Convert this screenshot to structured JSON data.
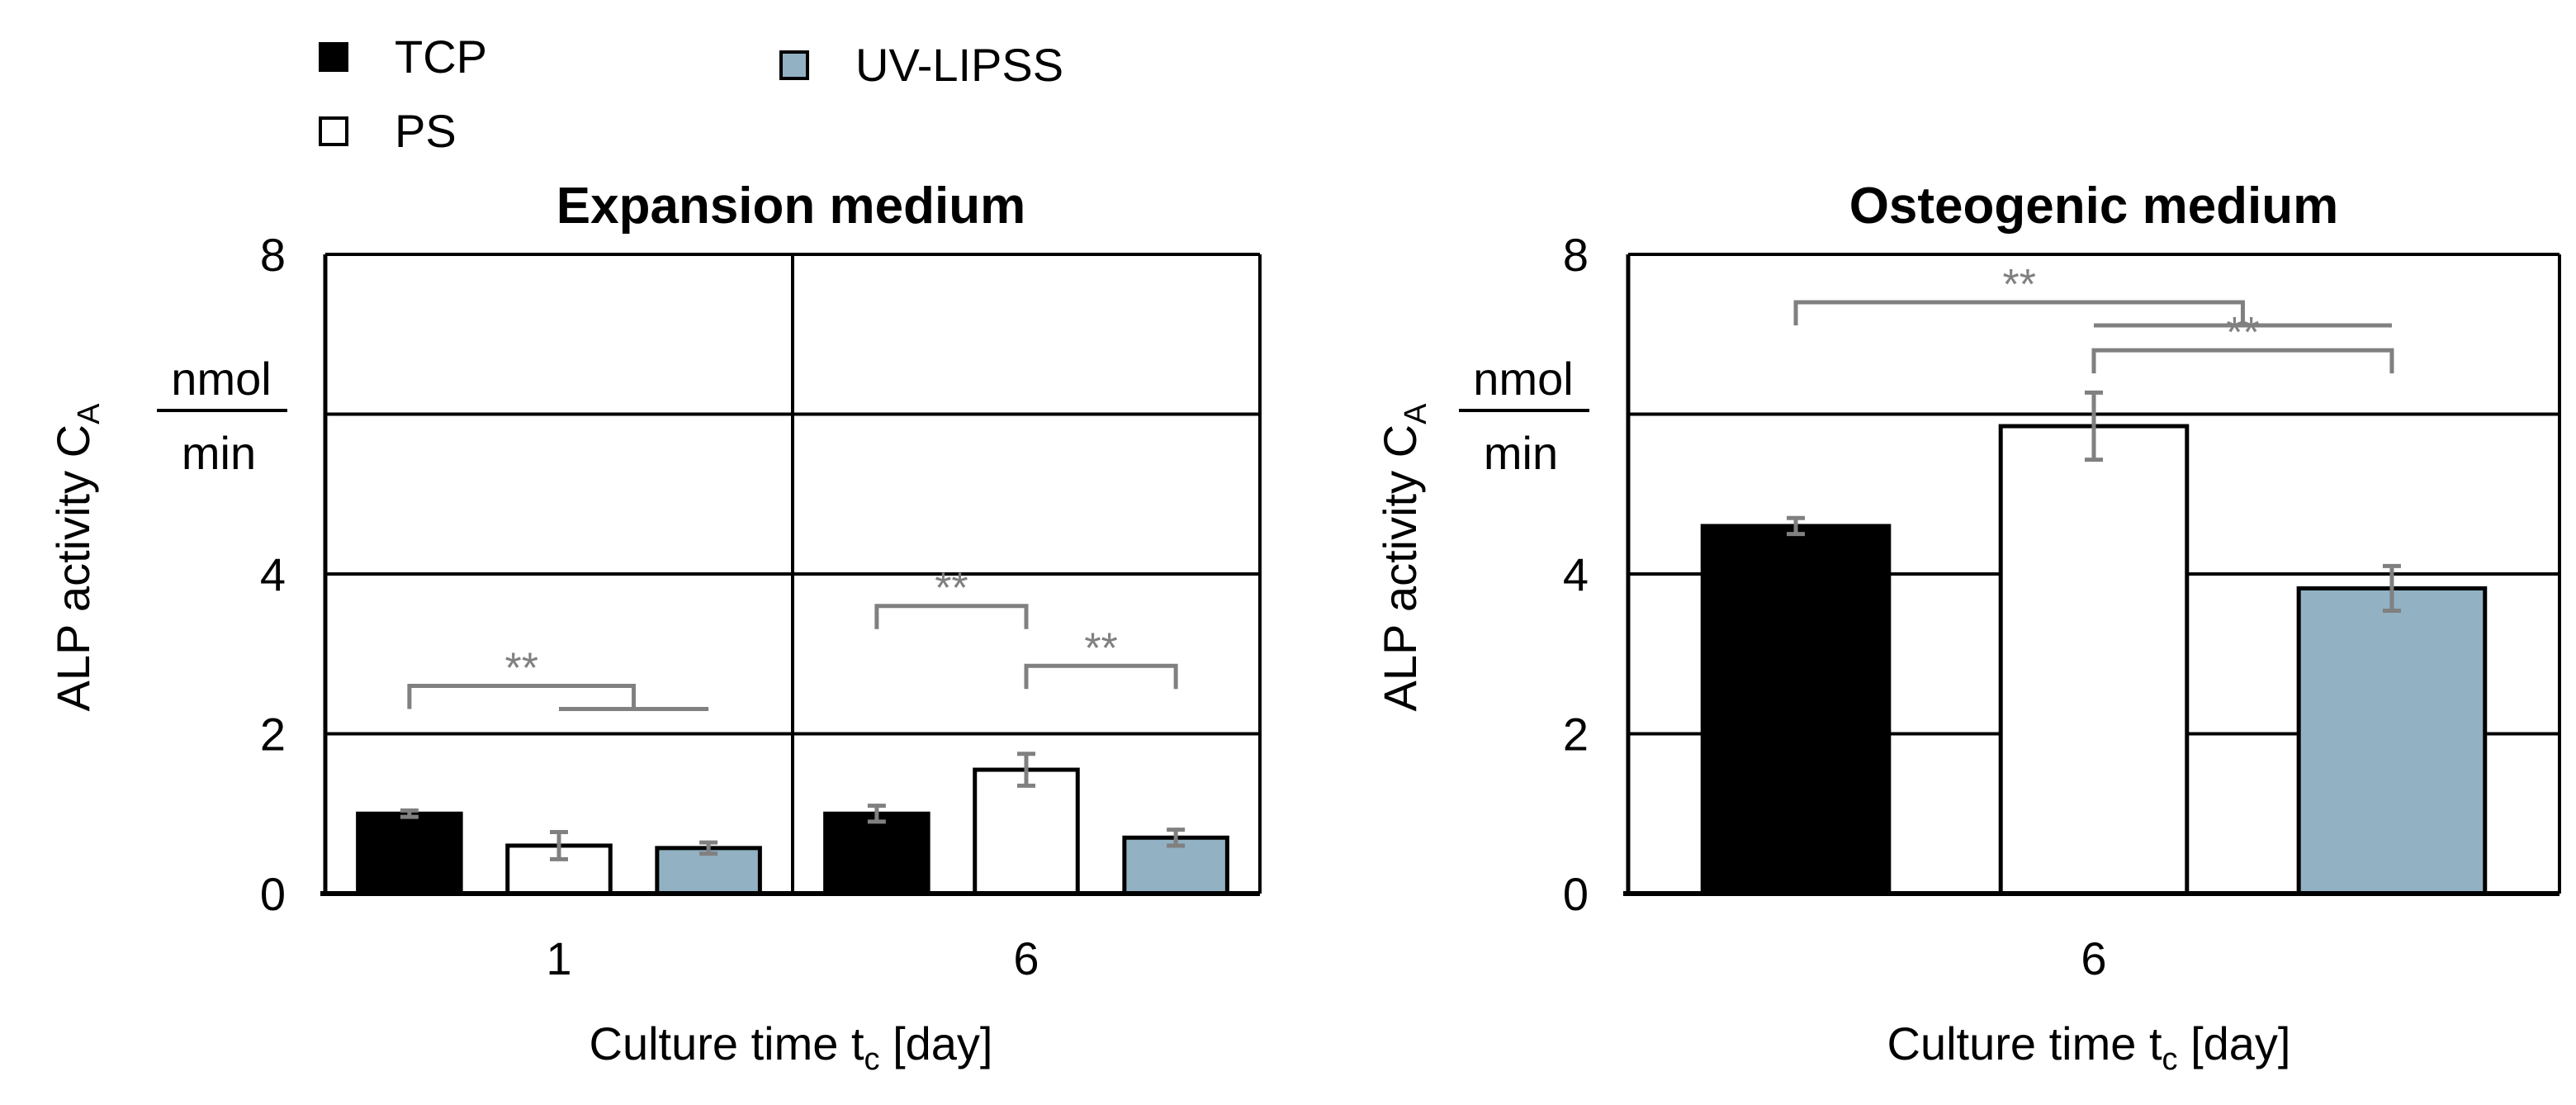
{
  "legend": {
    "placement": "top-left",
    "items": [
      {
        "label": "TCP",
        "color": "#000000"
      },
      {
        "label": "PS",
        "color": "#ffffff"
      },
      {
        "label": "UV-LIPSS",
        "color": "#92b1c3"
      }
    ]
  },
  "significance_color": "#808080",
  "chart_data": [
    {
      "type": "bar",
      "title": "Expansion medium",
      "xlabel": "Culture time t_c [day]",
      "ylabel": "ALP activity C_A [nmol/min]",
      "ylabel_main": "ALP activity C",
      "ylabel_sub": "A",
      "ylabel_unit_num": "nmol",
      "ylabel_unit_den": "min",
      "xlabel_main": "Culture time t",
      "xlabel_sub": "c",
      "xlabel_tail": " [day]",
      "ylim": [
        0,
        8
      ],
      "yticks": [
        "0",
        "2",
        "4",
        "8"
      ],
      "gridlines": [
        2,
        4,
        6
      ],
      "categories": [
        "1",
        "6"
      ],
      "series": [
        {
          "name": "TCP",
          "values": [
            1.0,
            1.0
          ],
          "errors": [
            0.04,
            0.1
          ]
        },
        {
          "name": "PS",
          "values": [
            0.6,
            1.55
          ],
          "errors": [
            0.17,
            0.2
          ]
        },
        {
          "name": "UV-LIPSS",
          "values": [
            0.57,
            0.7
          ],
          "errors": [
            0.07,
            0.1
          ]
        }
      ],
      "significance": [
        {
          "label": "**",
          "category": 0,
          "left": 0,
          "right": [
            1,
            2
          ],
          "y": 2.6
        },
        {
          "label": "**",
          "category": 1,
          "left": 0,
          "right": [
            1
          ],
          "y": 3.6
        },
        {
          "label": "**",
          "category": 1,
          "left": 1,
          "right": [
            2
          ],
          "y": 2.85
        }
      ]
    },
    {
      "type": "bar",
      "title": "Osteogenic medium",
      "xlabel": "Culture time t_c [day]",
      "ylabel": "ALP activity C_A [nmol/min]",
      "ylabel_main": "ALP activity C",
      "ylabel_sub": "A",
      "ylabel_unit_num": "nmol",
      "ylabel_unit_den": "min",
      "xlabel_main": "Culture time t",
      "xlabel_sub": "c",
      "xlabel_tail": " [day]",
      "ylim": [
        0,
        8
      ],
      "yticks": [
        "0",
        "2",
        "4",
        "8"
      ],
      "gridlines": [
        2,
        4,
        6
      ],
      "categories": [
        "6"
      ],
      "series": [
        {
          "name": "TCP",
          "values": [
            4.6
          ],
          "errors": [
            0.1
          ]
        },
        {
          "name": "PS",
          "values": [
            5.85
          ],
          "errors": [
            0.42
          ]
        },
        {
          "name": "UV-LIPSS",
          "values": [
            3.82
          ],
          "errors": [
            0.28
          ]
        }
      ],
      "significance": [
        {
          "label": "**",
          "category": 0,
          "left": 0,
          "right": [
            1,
            2
          ],
          "y": 7.4
        },
        {
          "label": "**",
          "category": 0,
          "left": 1,
          "right": [
            2
          ],
          "y": 6.8
        }
      ]
    }
  ]
}
